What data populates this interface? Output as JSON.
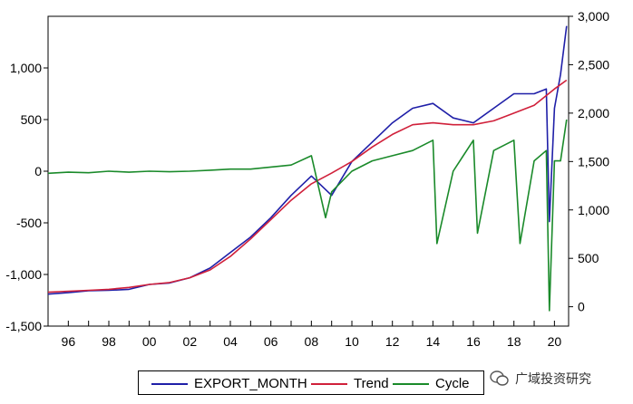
{
  "chart_data": {
    "type": "line",
    "x_ticks": [
      "96",
      "98",
      "00",
      "02",
      "04",
      "06",
      "08",
      "10",
      "12",
      "14",
      "16",
      "18",
      "20"
    ],
    "x_range": [
      1995,
      2020.7
    ],
    "left_axis": {
      "ticks": [
        "1,000",
        "500",
        "0",
        "-500",
        "-1,000",
        "-1,500"
      ],
      "values": [
        1000,
        500,
        0,
        -500,
        -1000,
        -1500
      ],
      "range": [
        -1500,
        1500
      ]
    },
    "right_axis": {
      "ticks": [
        "3,000",
        "2,500",
        "2,000",
        "1,500",
        "1,000",
        "500",
        "0"
      ],
      "values": [
        3000,
        2500,
        2000,
        1500,
        1000,
        500,
        0
      ],
      "range": [
        -200,
        3000
      ]
    },
    "series": [
      {
        "name": "EXPORT_MONTH",
        "color": "#1f1fa8",
        "axis": "right",
        "points": [
          [
            1995,
            130
          ],
          [
            1996,
            145
          ],
          [
            1997,
            165
          ],
          [
            1998,
            170
          ],
          [
            1999,
            180
          ],
          [
            2000,
            230
          ],
          [
            2001,
            245
          ],
          [
            2002,
            300
          ],
          [
            2003,
            400
          ],
          [
            2004,
            560
          ],
          [
            2005,
            720
          ],
          [
            2006,
            920
          ],
          [
            2007,
            1150
          ],
          [
            2008,
            1350
          ],
          [
            2009,
            1150
          ],
          [
            2010,
            1500
          ],
          [
            2011,
            1700
          ],
          [
            2012,
            1900
          ],
          [
            2013,
            2050
          ],
          [
            2014,
            2100
          ],
          [
            2015,
            1950
          ],
          [
            2016,
            1900
          ],
          [
            2017,
            2050
          ],
          [
            2018,
            2200
          ],
          [
            2019,
            2200
          ],
          [
            2019.6,
            2250
          ],
          [
            2019.75,
            880
          ],
          [
            2020,
            2050
          ],
          [
            2020.3,
            2400
          ],
          [
            2020.6,
            2900
          ]
        ]
      },
      {
        "name": "Trend",
        "color": "#d0203a",
        "axis": "right",
        "points": [
          [
            1995,
            150
          ],
          [
            1996,
            160
          ],
          [
            1997,
            170
          ],
          [
            1998,
            180
          ],
          [
            1999,
            200
          ],
          [
            2000,
            230
          ],
          [
            2001,
            250
          ],
          [
            2002,
            300
          ],
          [
            2003,
            380
          ],
          [
            2004,
            520
          ],
          [
            2005,
            700
          ],
          [
            2006,
            900
          ],
          [
            2007,
            1100
          ],
          [
            2008,
            1270
          ],
          [
            2009,
            1380
          ],
          [
            2010,
            1500
          ],
          [
            2011,
            1650
          ],
          [
            2012,
            1780
          ],
          [
            2013,
            1880
          ],
          [
            2014,
            1900
          ],
          [
            2015,
            1880
          ],
          [
            2016,
            1880
          ],
          [
            2017,
            1920
          ],
          [
            2018,
            2000
          ],
          [
            2019,
            2080
          ],
          [
            2020,
            2250
          ],
          [
            2020.6,
            2340
          ]
        ]
      },
      {
        "name": "Cycle",
        "color": "#1a8a2a",
        "axis": "left",
        "points": [
          [
            1995,
            -20
          ],
          [
            1996,
            -10
          ],
          [
            1997,
            -15
          ],
          [
            1998,
            0
          ],
          [
            1999,
            -10
          ],
          [
            2000,
            0
          ],
          [
            2001,
            -5
          ],
          [
            2002,
            0
          ],
          [
            2003,
            10
          ],
          [
            2004,
            20
          ],
          [
            2005,
            20
          ],
          [
            2006,
            40
          ],
          [
            2007,
            60
          ],
          [
            2008,
            150
          ],
          [
            2008.7,
            -450
          ],
          [
            2009,
            -200
          ],
          [
            2010,
            0
          ],
          [
            2011,
            100
          ],
          [
            2012,
            150
          ],
          [
            2013,
            200
          ],
          [
            2014,
            300
          ],
          [
            2014.2,
            -700
          ],
          [
            2015,
            0
          ],
          [
            2016,
            300
          ],
          [
            2016.2,
            -600
          ],
          [
            2017,
            200
          ],
          [
            2018,
            300
          ],
          [
            2018.3,
            -700
          ],
          [
            2019,
            100
          ],
          [
            2019.6,
            200
          ],
          [
            2019.75,
            -1350
          ],
          [
            2020,
            100
          ],
          [
            2020.3,
            100
          ],
          [
            2020.6,
            500
          ]
        ]
      }
    ],
    "legend": [
      "EXPORT_MONTH",
      "Trend",
      "Cycle"
    ],
    "grid": false,
    "legend_position": "bottom"
  },
  "watermark": "广域投资研究"
}
